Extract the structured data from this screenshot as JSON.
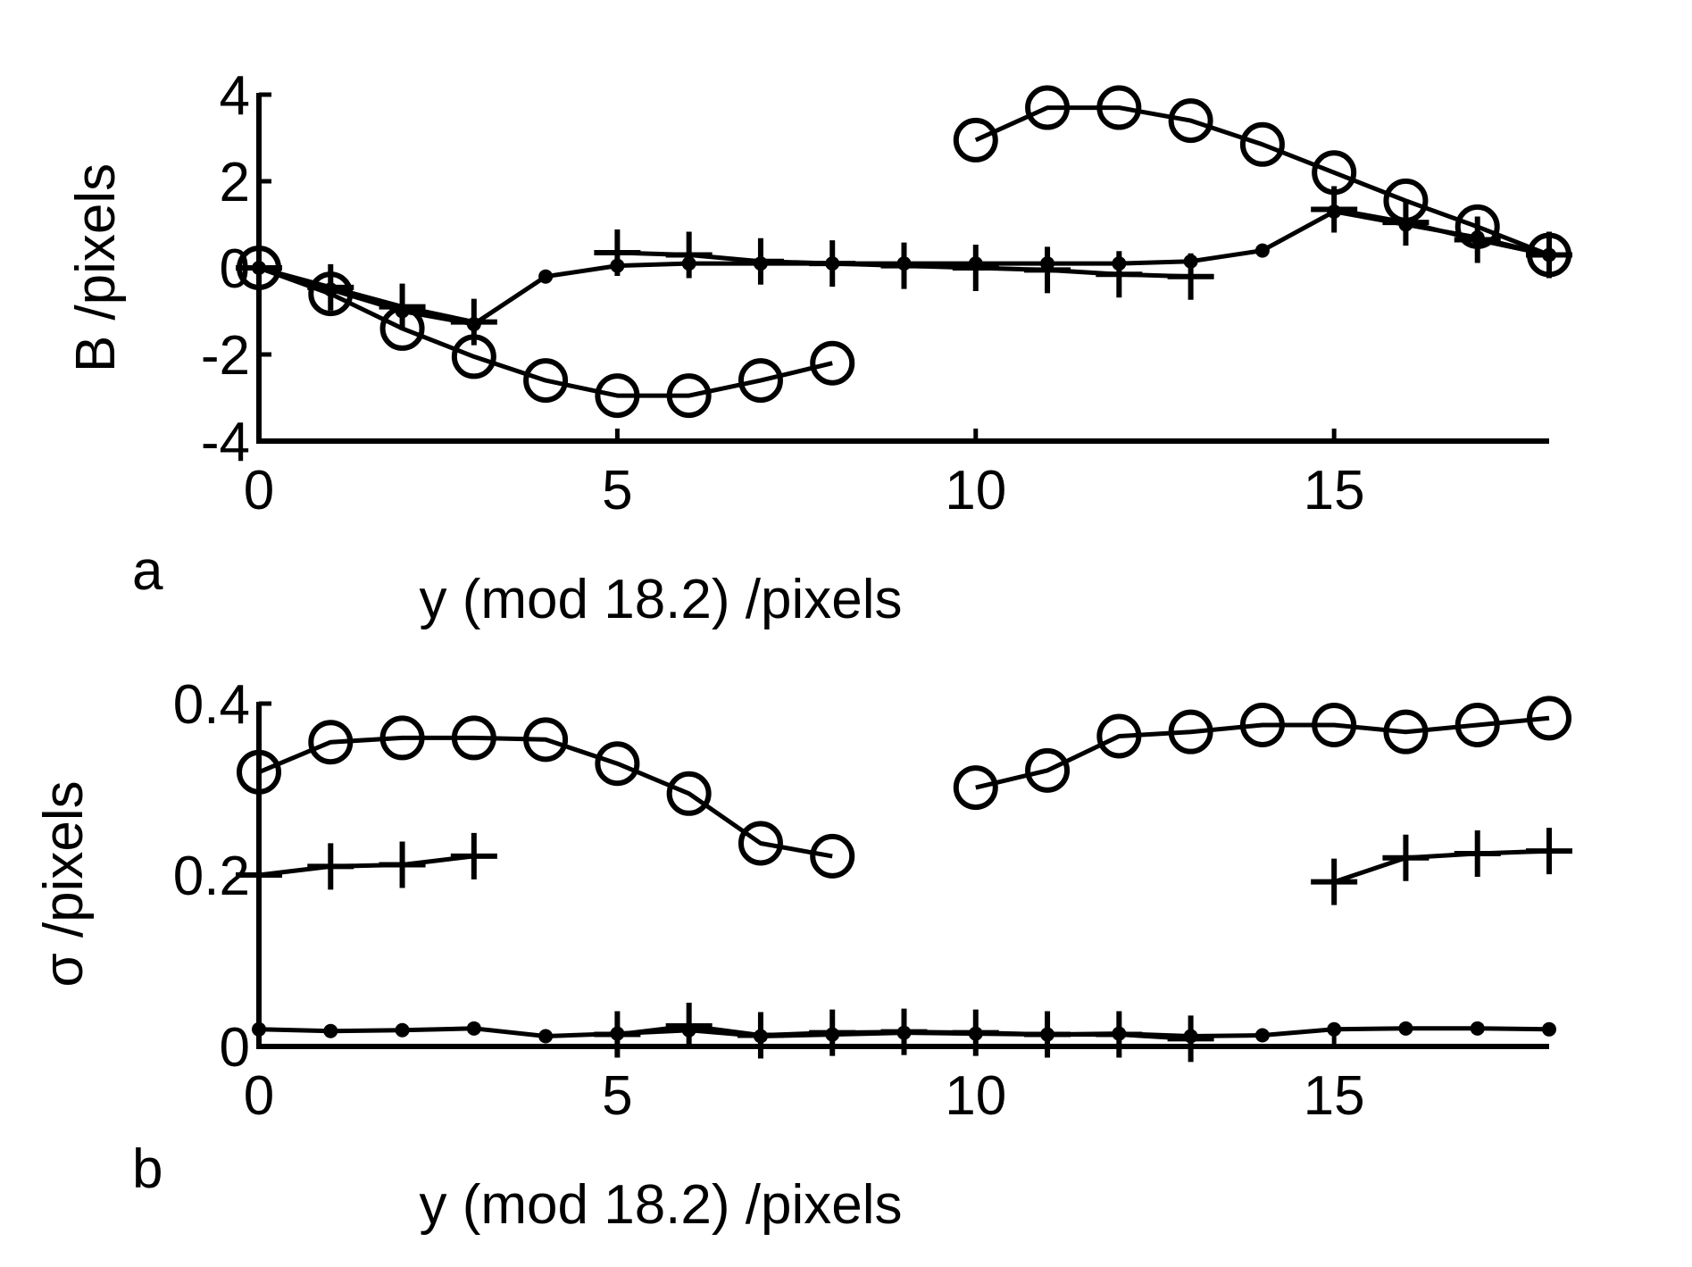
{
  "colors": {
    "ink": "#000000",
    "background": "#ffffff"
  },
  "chart_data": [
    {
      "panel_label": "a",
      "type": "line",
      "xlabel": "y (mod 18.2) /pixels",
      "ylabel": "B /pixels",
      "xlim": [
        0,
        18
      ],
      "ylim": [
        -4,
        4
      ],
      "xticks": [
        0,
        5,
        10,
        15
      ],
      "yticks": [
        -4,
        -2,
        0,
        2,
        4
      ],
      "xtick_labels": [
        "0",
        "5",
        "10",
        "15"
      ],
      "ytick_labels": [
        "-4",
        "-2",
        "0",
        "2",
        "4"
      ],
      "grid": false,
      "series": [
        {
          "name": "circles segment 1",
          "marker": "circle",
          "x": [
            0,
            1,
            2,
            3,
            4,
            5,
            6,
            7,
            8
          ],
          "y": [
            0,
            -0.6,
            -1.4,
            -2.05,
            -2.6,
            -2.95,
            -2.95,
            -2.6,
            -2.2
          ]
        },
        {
          "name": "circles segment 2",
          "marker": "circle",
          "x": [
            10,
            11,
            12,
            13,
            14,
            15,
            16,
            17,
            18
          ],
          "y": [
            2.95,
            3.7,
            3.7,
            3.4,
            2.85,
            2.2,
            1.55,
            0.95,
            0.3
          ]
        },
        {
          "name": "plus segment 1",
          "marker": "plus",
          "x": [
            0,
            1,
            2,
            3
          ],
          "y": [
            0,
            -0.45,
            -0.9,
            -1.25
          ]
        },
        {
          "name": "plus segment 2",
          "marker": "plus",
          "x": [
            5,
            6,
            7,
            8,
            9,
            10,
            11,
            12,
            13
          ],
          "y": [
            0.35,
            0.3,
            0.15,
            0.1,
            0.05,
            0,
            -0.05,
            -0.15,
            -0.2
          ]
        },
        {
          "name": "plus segment 3",
          "marker": "plus",
          "x": [
            15,
            16,
            17,
            18
          ],
          "y": [
            1.35,
            1.05,
            0.65,
            0.3
          ]
        },
        {
          "name": "dots",
          "marker": "dot",
          "x": [
            0,
            1,
            2,
            3,
            4,
            5,
            6,
            7,
            8,
            9,
            10,
            11,
            12,
            13,
            14,
            15,
            16,
            17,
            18
          ],
          "y": [
            0,
            -0.5,
            -1.0,
            -1.3,
            -0.2,
            0.05,
            0.1,
            0.1,
            0.1,
            0.1,
            0.1,
            0.1,
            0.1,
            0.15,
            0.4,
            1.3,
            1.0,
            0.7,
            0.3
          ]
        }
      ]
    },
    {
      "panel_label": "b",
      "type": "line",
      "xlabel": "y (mod 18.2) /pixels",
      "ylabel": "σ /pixels",
      "xlim": [
        0,
        18
      ],
      "ylim": [
        0,
        0.4
      ],
      "xticks": [
        0,
        5,
        10,
        15
      ],
      "yticks": [
        0,
        0.2,
        0.4
      ],
      "xtick_labels": [
        "0",
        "5",
        "10",
        "15"
      ],
      "ytick_labels": [
        "0",
        "0.2",
        "0.4"
      ],
      "grid": false,
      "series": [
        {
          "name": "circles segment 1",
          "marker": "circle",
          "x": [
            0,
            1,
            2,
            3,
            4,
            5,
            6,
            7,
            8
          ],
          "y": [
            0.32,
            0.355,
            0.36,
            0.36,
            0.358,
            0.33,
            0.295,
            0.237,
            0.222
          ]
        },
        {
          "name": "circles segment 2",
          "marker": "circle",
          "x": [
            10,
            11,
            12,
            13,
            14,
            15,
            16,
            17,
            18
          ],
          "y": [
            0.302,
            0.322,
            0.362,
            0.367,
            0.375,
            0.375,
            0.367,
            0.375,
            0.383
          ]
        },
        {
          "name": "plus segment 1",
          "marker": "plus",
          "x": [
            0,
            1,
            2,
            3
          ],
          "y": [
            0.2,
            0.21,
            0.212,
            0.222
          ]
        },
        {
          "name": "plus segment 2",
          "marker": "plus",
          "x": [
            5,
            6,
            7,
            8,
            9,
            10,
            11,
            12,
            13
          ],
          "y": [
            0.014,
            0.024,
            0.013,
            0.016,
            0.017,
            0.016,
            0.014,
            0.014,
            0.009
          ]
        },
        {
          "name": "plus segment 3",
          "marker": "plus",
          "x": [
            15,
            16,
            17,
            18
          ],
          "y": [
            0.192,
            0.22,
            0.225,
            0.228
          ]
        },
        {
          "name": "dots",
          "marker": "dot",
          "x": [
            0,
            1,
            2,
            3,
            4,
            5,
            6,
            7,
            8,
            9,
            10,
            11,
            12,
            13,
            14,
            15,
            16,
            17,
            18
          ],
          "y": [
            0.02,
            0.018,
            0.019,
            0.021,
            0.012,
            0.015,
            0.019,
            0.012,
            0.014,
            0.016,
            0.015,
            0.014,
            0.015,
            0.012,
            0.013,
            0.02,
            0.021,
            0.021,
            0.02
          ]
        }
      ]
    }
  ]
}
